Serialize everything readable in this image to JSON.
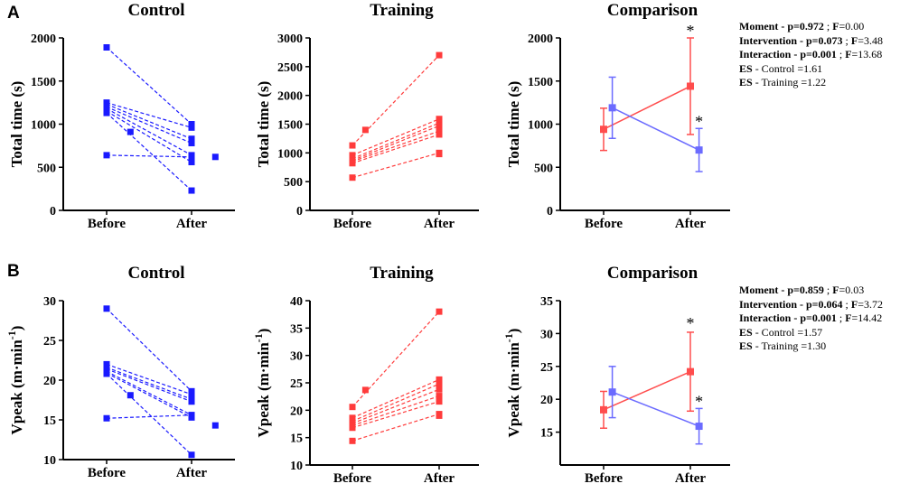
{
  "figure": {
    "panel_labels": [
      "A",
      "B"
    ],
    "colors": {
      "control": "#1a1aff",
      "training": "#ff3b3b",
      "axis": "#000000",
      "control_comp": "#6b6bff",
      "training_comp": "#ff4d4d"
    }
  },
  "stats_A": {
    "moment": {
      "label": "Moment",
      "p": "p=0.972",
      "sep": ";",
      "f_label": "F",
      "f_val": "=0.00"
    },
    "intervention": {
      "label": "Intervention",
      "p": "p=0.073",
      "sep": ";",
      "f_label": "F",
      "f_val": "=3.48"
    },
    "interaction": {
      "label": "Interaction",
      "p": "p=0.001",
      "sep": ";",
      "f_label": "F",
      "f_val": "=13.68"
    },
    "es_control": {
      "label": "ES",
      "text": "- Control =1.61"
    },
    "es_training": {
      "label": "ES",
      "text": "- Training =1.22"
    }
  },
  "stats_B": {
    "moment": {
      "label": "Moment",
      "p": "p=0.859",
      "sep": ";",
      "f_label": "F",
      "f_val": "=0.03"
    },
    "intervention": {
      "label": "Intervention",
      "p": "p=0.064",
      "sep": ";",
      "f_label": "F",
      "f_val": "=3.72"
    },
    "interaction": {
      "label": "Interaction",
      "p": "p=0.001",
      "sep": ";",
      "f_label": "F",
      "f_val": "=14.42"
    },
    "es_control": {
      "label": "ES",
      "text": "- Control =1.57"
    },
    "es_training": {
      "label": "ES",
      "text": "- Training =1.30"
    }
  },
  "chart_data": [
    {
      "id": "A-control",
      "type": "line",
      "title": "Control",
      "ylabel": "Total time (s)",
      "categories": [
        "Before",
        "After"
      ],
      "ylim": [
        0,
        2000
      ],
      "yticks": [
        0,
        500,
        1000,
        1500,
        2000
      ],
      "color": "control",
      "pairs": [
        [
          1890,
          1000
        ],
        [
          1250,
          960
        ],
        [
          1230,
          830
        ],
        [
          1200,
          780
        ],
        [
          1180,
          640
        ],
        [
          1150,
          560
        ],
        [
          1130,
          230
        ],
        [
          640,
          620
        ]
      ],
      "unpaired": [
        {
          "x": 0.28,
          "y": 910
        },
        {
          "x": 1.28,
          "y": 620
        }
      ]
    },
    {
      "id": "A-training",
      "type": "line",
      "title": "Training",
      "ylabel": "Total time (s)",
      "categories": [
        "Before",
        "After"
      ],
      "ylim": [
        0,
        3000
      ],
      "yticks": [
        0,
        500,
        1000,
        1500,
        2000,
        2500,
        3000
      ],
      "color": "training",
      "pairs": [
        [
          1130,
          2700
        ],
        [
          960,
          1590
        ],
        [
          900,
          1520
        ],
        [
          870,
          1470
        ],
        [
          850,
          1380
        ],
        [
          820,
          1320
        ],
        [
          570,
          1000
        ]
      ],
      "unpaired": [
        {
          "x": 0.15,
          "y": 1400
        },
        {
          "x": 1.0,
          "y": 980
        }
      ]
    },
    {
      "id": "A-comparison",
      "type": "line",
      "title": "Comparison",
      "ylabel": "Total time (s)",
      "categories": [
        "Before",
        "After"
      ],
      "ylim": [
        0,
        2000
      ],
      "yticks": [
        0,
        500,
        1000,
        1500,
        2000
      ],
      "series": [
        {
          "name": "Training",
          "color": "training_comp",
          "x": [
            0,
            1
          ],
          "mean": [
            940,
            1440
          ],
          "err": [
            245,
            560
          ]
        },
        {
          "name": "Control",
          "color": "control_comp",
          "x": [
            0.1,
            1.1
          ],
          "mean": [
            1190,
            700
          ],
          "err": [
            355,
            250
          ]
        }
      ],
      "annotations": [
        {
          "x": 1.0,
          "y": 2000,
          "text": "*"
        },
        {
          "x": 1.1,
          "y": 950,
          "text": "*"
        }
      ]
    },
    {
      "id": "B-control",
      "type": "line",
      "title": "Control",
      "ylabel": "Vpeak (m·min",
      "ylabel_sup": "-1",
      "ylabel_end": ")",
      "categories": [
        "Before",
        "After"
      ],
      "ylim": [
        10,
        30
      ],
      "yticks": [
        10,
        15,
        20,
        25,
        30
      ],
      "color": "control",
      "pairs": [
        [
          29.0,
          18.6
        ],
        [
          22.0,
          18.2
        ],
        [
          21.6,
          17.6
        ],
        [
          21.4,
          17.3
        ],
        [
          21.1,
          15.6
        ],
        [
          20.9,
          15.3
        ],
        [
          20.8,
          10.6
        ],
        [
          15.2,
          15.6
        ]
      ],
      "unpaired": [
        {
          "x": 0.28,
          "y": 18.1
        },
        {
          "x": 1.28,
          "y": 14.3
        }
      ]
    },
    {
      "id": "B-training",
      "type": "line",
      "title": "Training",
      "ylabel": "Vpeak (m·min",
      "ylabel_sup": "-1",
      "ylabel_end": ")",
      "categories": [
        "Before",
        "After"
      ],
      "ylim": [
        10,
        40
      ],
      "yticks": [
        10,
        15,
        20,
        25,
        30,
        35,
        40
      ],
      "color": "training",
      "pairs": [
        [
          20.6,
          38.0
        ],
        [
          18.6,
          25.6
        ],
        [
          18.0,
          24.8
        ],
        [
          17.6,
          23.8
        ],
        [
          17.2,
          22.6
        ],
        [
          16.8,
          21.6
        ],
        [
          14.4,
          19.3
        ]
      ],
      "unpaired": [
        {
          "x": 0.15,
          "y": 23.7
        },
        {
          "x": 1.0,
          "y": 19.0
        }
      ]
    },
    {
      "id": "B-comparison",
      "type": "line",
      "title": "Comparison",
      "ylabel": "Vpeak (m·min",
      "ylabel_sup": "-1",
      "ylabel_end": ")",
      "categories": [
        "Before",
        "After"
      ],
      "ylim": [
        10,
        35
      ],
      "yticks": [
        15,
        20,
        25,
        30,
        35
      ],
      "series": [
        {
          "name": "Training",
          "color": "training_comp",
          "x": [
            0,
            1
          ],
          "mean": [
            18.4,
            24.2
          ],
          "err": [
            2.8,
            6.0
          ]
        },
        {
          "name": "Control",
          "color": "control_comp",
          "x": [
            0.1,
            1.1
          ],
          "mean": [
            21.1,
            15.9
          ],
          "err": [
            3.9,
            2.7
          ]
        }
      ],
      "annotations": [
        {
          "x": 1.0,
          "y": 30.5,
          "text": "*"
        },
        {
          "x": 1.1,
          "y": 18.6,
          "text": "*"
        }
      ]
    }
  ]
}
